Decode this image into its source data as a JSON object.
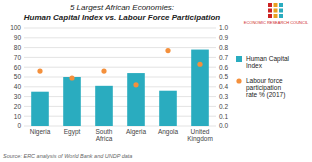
{
  "chart_data": {
    "type": "bar",
    "title": "5 Largest African Economies:",
    "subtitle": "Human Capital Index vs. Labour Force Participation",
    "annotations": [
      "Source: ERC analysis of World Bank and UNDP data",
      "ECONOMIC RESEARCH COUNCIL"
    ],
    "categories": [
      "Nigeria",
      "Egypt",
      "South Africa",
      "Algeria",
      "Angola",
      "United Kingdom"
    ],
    "series": [
      {
        "name": "Human Capital\nIndex",
        "type": "bar",
        "color": "#2aacbf",
        "values": [
          35,
          50,
          41,
          54,
          36,
          78
        ]
      },
      {
        "name": "Labour force\nparticipation\nrate % (2017)",
        "type": "scatter",
        "axis": "y2",
        "color": "#f4903c",
        "values": [
          0.56,
          0.49,
          0.56,
          0.42,
          0.77,
          0.63
        ]
      }
    ],
    "ylim": [
      0,
      100
    ],
    "yticks": [
      0,
      10,
      20,
      30,
      40,
      50,
      60,
      70,
      80,
      90,
      100
    ],
    "y2lim": [
      0,
      1.0
    ],
    "y2ticks": [
      {
        "value": 0,
        "label": "0.0"
      },
      0.1,
      0.2,
      0.3,
      0.4,
      0.5,
      0.6,
      0.7,
      0.8,
      0.9,
      {
        "value": 1,
        "label": "1.0"
      }
    ],
    "grid": true,
    "legend": "right"
  }
}
